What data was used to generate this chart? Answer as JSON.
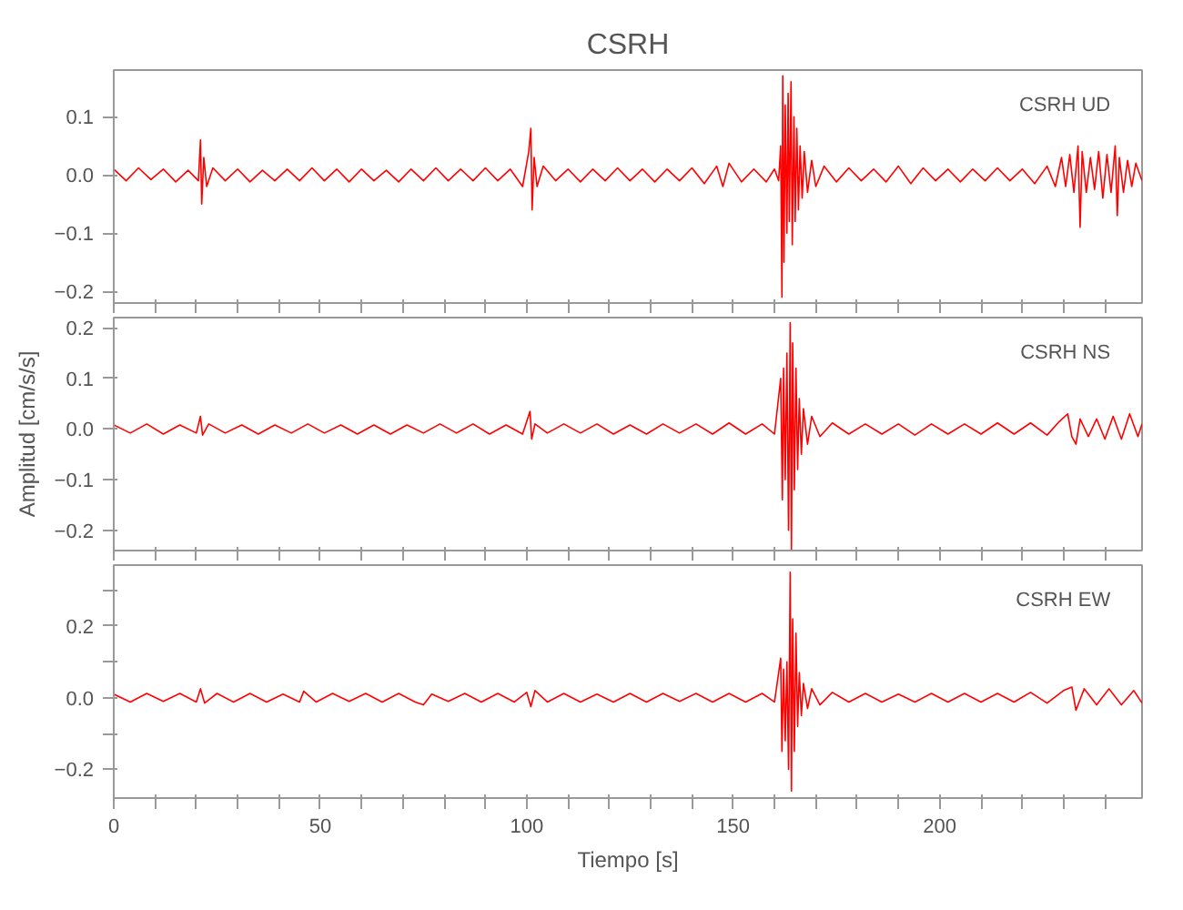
{
  "chart_data": [
    {
      "type": "line",
      "title": "CSRH",
      "tick_labels": "y",
      "grid": false,
      "marker": "none",
      "line_style": "solid",
      "annotations": [
        "CSRH   UD"
      ],
      "xlim": [
        0,
        249
      ],
      "xticks": [
        0,
        {
          "value": 10,
          "label": null
        },
        {
          "value": 20,
          "label": null
        },
        {
          "value": 30,
          "label": null
        },
        {
          "value": 40,
          "label": null
        },
        50,
        {
          "value": 60,
          "label": null
        },
        {
          "value": 70,
          "label": null
        },
        {
          "value": 80,
          "label": null
        },
        {
          "value": 90,
          "label": null
        },
        100,
        {
          "value": 110,
          "label": null
        },
        {
          "value": 120,
          "label": null
        },
        {
          "value": 130,
          "label": null
        },
        {
          "value": 140,
          "label": null
        },
        150,
        {
          "value": 160,
          "label": null
        },
        {
          "value": 170,
          "label": null
        },
        {
          "value": 180,
          "label": null
        },
        {
          "value": 190,
          "label": null
        },
        200,
        {
          "value": 210,
          "label": null
        },
        {
          "value": 220,
          "label": null
        },
        {
          "value": 230,
          "label": null
        },
        {
          "value": 240,
          "label": null
        }
      ],
      "ylim": [
        -0.22,
        0.18
      ],
      "yticks": [
        {
          "value": -0.2,
          "label": "−0.2"
        },
        {
          "value": -0.1,
          "label": "−0.1"
        },
        {
          "value": 0,
          "label": "0.0"
        },
        {
          "value": 0.1,
          "label": "0.1"
        }
      ],
      "series": [
        {
          "color": "#ff0000",
          "x": [
            0,
            3,
            6,
            9,
            12,
            15,
            18,
            20.5,
            21,
            21.3,
            21.8,
            22.5,
            24,
            27,
            30,
            33,
            36,
            39,
            42,
            45,
            48,
            51,
            54,
            57,
            60,
            63,
            66,
            69,
            72,
            75,
            78,
            81,
            84,
            87,
            90,
            93,
            96,
            99,
            100.5,
            101,
            101.3,
            101.8,
            102.5,
            104,
            107,
            110,
            113,
            116,
            119,
            122,
            125,
            128,
            131,
            134,
            137,
            140,
            143,
            146,
            147.5,
            149,
            152,
            155,
            158,
            160,
            161,
            161.5,
            161.8,
            162,
            162.3,
            162.6,
            163,
            163.3,
            163.6,
            164,
            164.3,
            164.7,
            165,
            165.4,
            165.8,
            166.2,
            166.7,
            167.2,
            168,
            169,
            170,
            172,
            175,
            178,
            181,
            184,
            187,
            190,
            193,
            196,
            199,
            202,
            205,
            208,
            211,
            214,
            217,
            220,
            223,
            226,
            228,
            229.5,
            230.5,
            231.5,
            232.5,
            233.5,
            234,
            234.5,
            235.5,
            236.5,
            237.5,
            238.5,
            239.5,
            240.5,
            241.5,
            242.5,
            243,
            243.5,
            244.5,
            245.5,
            246.5,
            247.5,
            249
          ],
          "values": [
            0.01,
            -0.01,
            0.012,
            -0.008,
            0.01,
            -0.012,
            0.008,
            -0.01,
            0.06,
            -0.05,
            0.03,
            -0.02,
            0.012,
            -0.01,
            0.01,
            -0.012,
            0.008,
            -0.01,
            0.01,
            -0.01,
            0.012,
            -0.01,
            0.01,
            -0.012,
            0.01,
            -0.01,
            0.008,
            -0.012,
            0.01,
            -0.01,
            0.012,
            -0.01,
            0.01,
            -0.01,
            0.012,
            -0.01,
            0.01,
            -0.02,
            0.04,
            0.08,
            -0.06,
            0.03,
            -0.02,
            0.015,
            -0.01,
            0.01,
            -0.012,
            0.01,
            -0.01,
            0.012,
            -0.01,
            0.01,
            -0.012,
            0.01,
            -0.01,
            0.012,
            -0.015,
            0.015,
            -0.02,
            0.02,
            -0.012,
            0.01,
            -0.012,
            0.01,
            -0.01,
            0.05,
            -0.21,
            0.17,
            -0.15,
            0.12,
            -0.1,
            0.14,
            -0.08,
            0.16,
            -0.12,
            0.1,
            -0.08,
            0.08,
            -0.06,
            0.05,
            -0.04,
            0.04,
            -0.03,
            0.025,
            -0.02,
            0.015,
            -0.012,
            0.012,
            -0.01,
            0.01,
            -0.012,
            0.015,
            -0.015,
            0.012,
            -0.01,
            0.01,
            -0.012,
            0.01,
            -0.01,
            0.012,
            -0.01,
            0.01,
            -0.015,
            0.015,
            -0.02,
            0.03,
            -0.02,
            0.035,
            -0.03,
            0.05,
            -0.09,
            0.04,
            -0.03,
            0.03,
            -0.025,
            0.04,
            -0.04,
            0.035,
            -0.03,
            0.05,
            -0.07,
            0.03,
            -0.03,
            0.025,
            -0.02,
            0.02,
            -0.01
          ]
        }
      ]
    },
    {
      "type": "line",
      "ylabel": "Amplitud [cm/s/s]",
      "tick_labels": "y",
      "grid": false,
      "marker": "none",
      "line_style": "solid",
      "annotations": [
        "CSRH   NS"
      ],
      "xlim": [
        0,
        249
      ],
      "xticks": [
        0,
        {
          "value": 10,
          "label": null
        },
        {
          "value": 20,
          "label": null
        },
        {
          "value": 30,
          "label": null
        },
        {
          "value": 40,
          "label": null
        },
        50,
        {
          "value": 60,
          "label": null
        },
        {
          "value": 70,
          "label": null
        },
        {
          "value": 80,
          "label": null
        },
        {
          "value": 90,
          "label": null
        },
        100,
        {
          "value": 110,
          "label": null
        },
        {
          "value": 120,
          "label": null
        },
        {
          "value": 130,
          "label": null
        },
        {
          "value": 140,
          "label": null
        },
        150,
        {
          "value": 160,
          "label": null
        },
        {
          "value": 170,
          "label": null
        },
        {
          "value": 180,
          "label": null
        },
        {
          "value": 190,
          "label": null
        },
        200,
        {
          "value": 210,
          "label": null
        },
        {
          "value": 220,
          "label": null
        },
        {
          "value": 230,
          "label": null
        },
        {
          "value": 240,
          "label": null
        }
      ],
      "ylim": [
        -0.24,
        0.22
      ],
      "yticks": [
        {
          "value": -0.2,
          "label": "−0.2"
        },
        {
          "value": -0.1,
          "label": "−0.1"
        },
        {
          "value": 0,
          "label": "0.0"
        },
        {
          "value": 0.1,
          "label": "0.1"
        },
        {
          "value": 0.2,
          "label": "0.2"
        }
      ],
      "series": [
        {
          "color": "#ff0000",
          "x": [
            0,
            4,
            8,
            12,
            16,
            20,
            21,
            21.5,
            23,
            27,
            31,
            35,
            39,
            43,
            47,
            51,
            55,
            59,
            63,
            67,
            71,
            75,
            79,
            83,
            87,
            91,
            95,
            99,
            100.8,
            101.2,
            102,
            105,
            109,
            113,
            117,
            121,
            125,
            129,
            133,
            137,
            141,
            145,
            149,
            153,
            157,
            160,
            161.5,
            161.9,
            162.2,
            162.6,
            163,
            163.4,
            163.8,
            164.1,
            164.4,
            164.8,
            165.2,
            165.6,
            166,
            166.5,
            167,
            168,
            169,
            171,
            174,
            178,
            182,
            186,
            190,
            194,
            198,
            202,
            206,
            210,
            214,
            218,
            222,
            226,
            229,
            231,
            232,
            233,
            234,
            236,
            238,
            240,
            242,
            244,
            246,
            248,
            249
          ],
          "values": [
            0.008,
            -0.008,
            0.01,
            -0.01,
            0.008,
            -0.008,
            0.025,
            -0.012,
            0.01,
            -0.008,
            0.008,
            -0.01,
            0.008,
            -0.008,
            0.01,
            -0.008,
            0.008,
            -0.01,
            0.008,
            -0.01,
            0.008,
            -0.008,
            0.01,
            -0.008,
            0.01,
            -0.01,
            0.008,
            -0.01,
            0.035,
            -0.02,
            0.01,
            -0.008,
            0.01,
            -0.008,
            0.01,
            -0.01,
            0.008,
            -0.01,
            0.01,
            -0.008,
            0.01,
            -0.01,
            0.012,
            -0.01,
            0.01,
            -0.01,
            0.1,
            -0.14,
            0.12,
            -0.1,
            0.15,
            -0.2,
            0.21,
            -0.24,
            0.17,
            -0.12,
            0.12,
            -0.08,
            0.06,
            -0.05,
            0.04,
            -0.03,
            0.025,
            -0.015,
            0.012,
            -0.01,
            0.01,
            -0.01,
            0.01,
            -0.012,
            0.01,
            -0.01,
            0.01,
            -0.01,
            0.012,
            -0.01,
            0.012,
            -0.012,
            0.015,
            0.03,
            -0.015,
            -0.03,
            0.02,
            -0.015,
            0.02,
            -0.02,
            0.025,
            -0.02,
            0.03,
            -0.015,
            0.01
          ]
        }
      ]
    },
    {
      "type": "line",
      "xlabel": "Tiempo [s]",
      "grid": false,
      "marker": "none",
      "line_style": "solid",
      "annotations": [
        "CSRH   EW"
      ],
      "xlim": [
        0,
        249
      ],
      "xticks": [
        0,
        {
          "value": 10,
          "label": null
        },
        {
          "value": 20,
          "label": null
        },
        {
          "value": 30,
          "label": null
        },
        {
          "value": 40,
          "label": null
        },
        50,
        {
          "value": 60,
          "label": null
        },
        {
          "value": 70,
          "label": null
        },
        {
          "value": 80,
          "label": null
        },
        {
          "value": 90,
          "label": null
        },
        100,
        {
          "value": 110,
          "label": null
        },
        {
          "value": 120,
          "label": null
        },
        {
          "value": 130,
          "label": null
        },
        {
          "value": 140,
          "label": null
        },
        150,
        {
          "value": 160,
          "label": null
        },
        {
          "value": 170,
          "label": null
        },
        {
          "value": 180,
          "label": null
        },
        {
          "value": 190,
          "label": null
        },
        200,
        {
          "value": 210,
          "label": null
        },
        {
          "value": 220,
          "label": null
        },
        {
          "value": 230,
          "label": null
        },
        {
          "value": 240,
          "label": null
        }
      ],
      "ylim": [
        -0.28,
        0.37
      ],
      "yticks": [
        {
          "value": -0.2,
          "label": "−0.2"
        },
        {
          "value": -0.1,
          "label": null
        },
        {
          "value": 0,
          "label": "0.0"
        },
        {
          "value": 0.1,
          "label": null
        },
        {
          "value": 0.2,
          "label": "0.2"
        },
        {
          "value": 0.3,
          "label": null
        }
      ],
      "series": [
        {
          "color": "#ff0000",
          "x": [
            0,
            4,
            8,
            12,
            16,
            20,
            21,
            22,
            25,
            29,
            33,
            37,
            41,
            45,
            46,
            49,
            53,
            57,
            61,
            65,
            69,
            73,
            75,
            77,
            81,
            85,
            89,
            93,
            97,
            100,
            101,
            102,
            105,
            109,
            113,
            117,
            121,
            125,
            129,
            133,
            137,
            141,
            145,
            149,
            153,
            157,
            160,
            161.5,
            161.8,
            162.2,
            162.6,
            163,
            163.4,
            163.8,
            164.1,
            164.4,
            164.8,
            165.2,
            165.6,
            166,
            166.5,
            167,
            168,
            169,
            171,
            174,
            178,
            182,
            186,
            190,
            194,
            198,
            202,
            206,
            210,
            214,
            218,
            222,
            226,
            230,
            232,
            233,
            235,
            238,
            241,
            244,
            247,
            249
          ],
          "values": [
            0.01,
            -0.012,
            0.012,
            -0.01,
            0.012,
            -0.012,
            0.025,
            -0.015,
            0.012,
            -0.012,
            0.012,
            -0.012,
            0.01,
            -0.012,
            0.018,
            -0.012,
            0.012,
            -0.01,
            0.012,
            -0.012,
            0.012,
            -0.012,
            -0.02,
            0.01,
            -0.01,
            0.012,
            -0.012,
            0.012,
            -0.012,
            0.015,
            -0.025,
            0.02,
            -0.012,
            0.012,
            -0.012,
            0.01,
            -0.012,
            0.012,
            -0.012,
            0.012,
            -0.01,
            0.012,
            -0.012,
            0.012,
            -0.012,
            0.012,
            -0.012,
            0.11,
            -0.15,
            0.08,
            -0.12,
            0.1,
            -0.2,
            0.35,
            -0.26,
            0.22,
            -0.15,
            0.18,
            -0.08,
            0.07,
            -0.05,
            0.04,
            -0.03,
            0.025,
            -0.02,
            0.015,
            -0.012,
            0.012,
            -0.012,
            0.01,
            -0.012,
            0.012,
            -0.012,
            0.012,
            -0.012,
            0.012,
            -0.012,
            0.015,
            -0.015,
            0.02,
            0.03,
            -0.035,
            0.025,
            -0.02,
            0.025,
            -0.02,
            0.02,
            -0.015
          ]
        }
      ]
    }
  ]
}
